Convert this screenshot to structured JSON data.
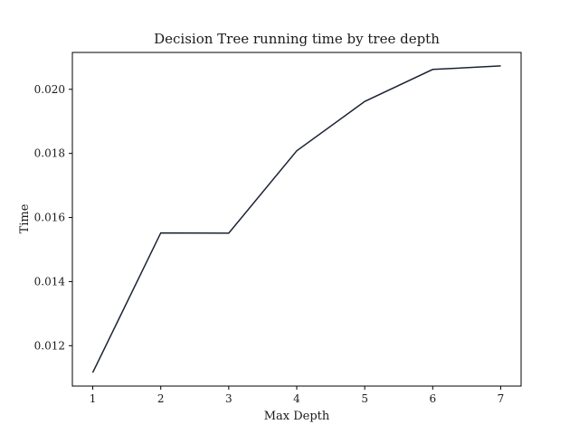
{
  "chart_data": {
    "type": "line",
    "title": "Decision Tree running time by tree depth",
    "xlabel": "Max Depth",
    "ylabel": "Time",
    "x": [
      1,
      2,
      3,
      4,
      5,
      6,
      7
    ],
    "series": [
      {
        "values": [
          0.01116,
          0.01552,
          0.01551,
          0.01808,
          0.01962,
          0.02062,
          0.02073
        ],
        "color": "#1b2333"
      }
    ],
    "xlim": [
      0.7,
      7.3
    ],
    "ylim": [
      0.01074,
      0.02115
    ],
    "xticks": [
      "1",
      "2",
      "3",
      "4",
      "5",
      "6",
      "7"
    ],
    "yticks": [
      "0.012",
      "0.014",
      "0.016",
      "0.018",
      "0.020"
    ],
    "grid": false,
    "legend": false
  }
}
